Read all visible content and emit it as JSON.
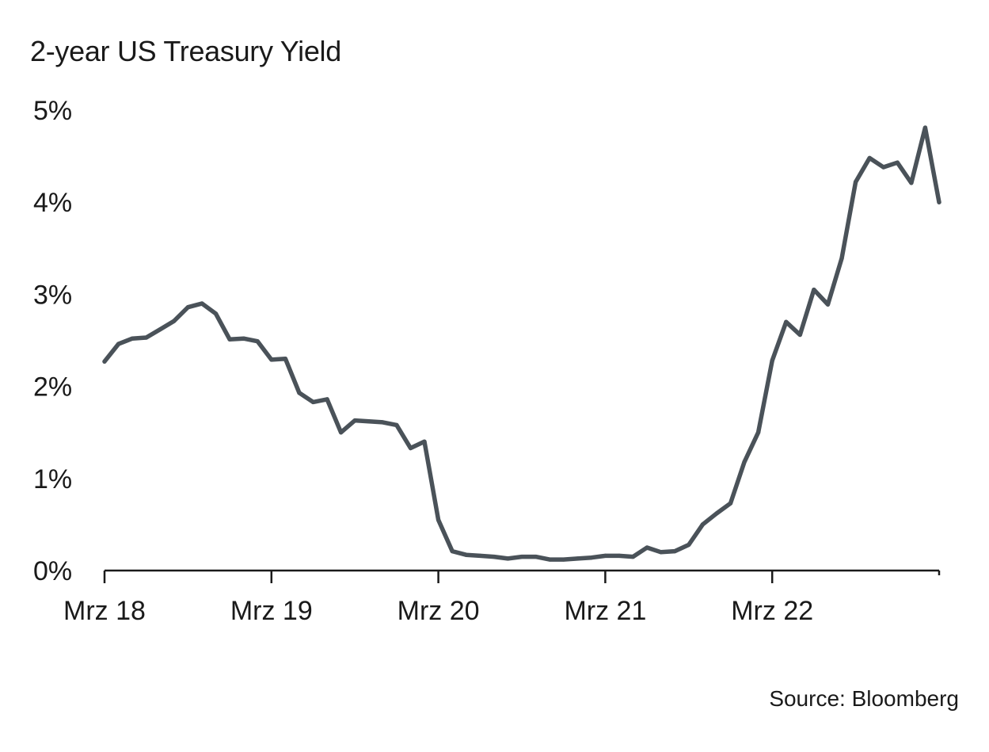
{
  "chart_data": {
    "type": "line",
    "title": "2-year US Treasury Yield",
    "source": "Source: Bloomberg",
    "xlabel": "",
    "ylabel": "",
    "x_tick_labels": [
      "Mrz 18",
      "Mrz 19",
      "Mrz 20",
      "Mrz 21",
      "Mrz 22"
    ],
    "y_tick_labels": [
      "0%",
      "1%",
      "2%",
      "3%",
      "4%",
      "5%"
    ],
    "y_ticks": [
      0,
      1,
      2,
      3,
      4,
      5
    ],
    "ylim": [
      0,
      5
    ],
    "xlim": [
      "2018-03",
      "2023-03"
    ],
    "grid": false,
    "colors": {
      "line": "#4a5259",
      "axis": "#1a1a1a",
      "text": "#1a1a1a"
    },
    "series": [
      {
        "x": [
          "2018-03",
          "2018-04",
          "2018-05",
          "2018-06",
          "2018-07",
          "2018-08",
          "2018-09",
          "2018-10",
          "2018-11",
          "2018-12",
          "2019-01",
          "2019-02",
          "2019-03",
          "2019-04",
          "2019-05",
          "2019-06",
          "2019-07",
          "2019-08",
          "2019-09",
          "2019-10",
          "2019-11",
          "2019-12",
          "2020-01",
          "2020-02",
          "2020-03",
          "2020-04",
          "2020-05",
          "2020-06",
          "2020-07",
          "2020-08",
          "2020-09",
          "2020-10",
          "2020-11",
          "2020-12",
          "2021-01",
          "2021-02",
          "2021-03",
          "2021-04",
          "2021-05",
          "2021-06",
          "2021-07",
          "2021-08",
          "2021-09",
          "2021-10",
          "2021-11",
          "2021-12",
          "2022-01",
          "2022-02",
          "2022-03",
          "2022-04",
          "2022-05",
          "2022-06",
          "2022-07",
          "2022-08",
          "2022-09",
          "2022-10",
          "2022-11",
          "2022-12",
          "2023-01",
          "2023-02",
          "2023-03"
        ],
        "values": [
          2.27,
          2.46,
          2.52,
          2.53,
          2.62,
          2.71,
          2.86,
          2.9,
          2.79,
          2.51,
          2.52,
          2.49,
          2.29,
          2.3,
          1.93,
          1.83,
          1.86,
          1.5,
          1.63,
          1.62,
          1.61,
          1.58,
          1.33,
          1.4,
          0.55,
          0.21,
          0.17,
          0.16,
          0.15,
          0.13,
          0.15,
          0.15,
          0.12,
          0.12,
          0.13,
          0.14,
          0.16,
          0.16,
          0.15,
          0.25,
          0.2,
          0.21,
          0.28,
          0.5,
          0.62,
          0.73,
          1.18,
          1.5,
          2.28,
          2.7,
          2.56,
          3.05,
          2.89,
          3.39,
          4.22,
          4.48,
          4.38,
          4.43,
          4.21,
          4.81,
          4.0
        ]
      }
    ]
  }
}
